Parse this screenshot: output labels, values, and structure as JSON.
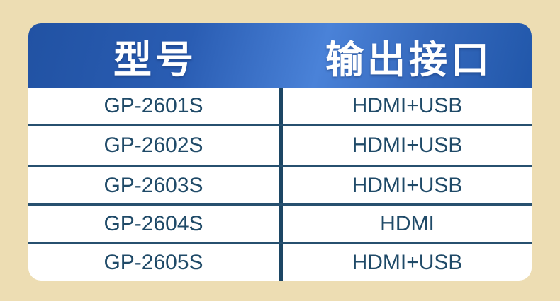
{
  "page": {
    "background_color": "#EDDDB3"
  },
  "table": {
    "header": {
      "columns": [
        {
          "label": "型号"
        },
        {
          "label": "输出接口"
        }
      ],
      "background_gradient": [
        "#2152A3",
        "#4A82D8",
        "#2157AA"
      ],
      "text_color": "#FFFFFF"
    },
    "rows": [
      {
        "model": "GP-2601S",
        "output": "HDMI+USB"
      },
      {
        "model": "GP-2602S",
        "output": "HDMI+USB"
      },
      {
        "model": "GP-2603S",
        "output": "HDMI+USB"
      },
      {
        "model": "GP-2604S",
        "output": "HDMI"
      },
      {
        "model": "GP-2605S",
        "output": "HDMI+USB"
      }
    ],
    "line_color": "#27506F",
    "divider_color": "#1C4664",
    "row_text_color": "#1F4A68"
  },
  "chart_data": {
    "type": "table",
    "title": "",
    "columns": [
      "型号",
      "输出接口"
    ],
    "rows": [
      [
        "GP-2601S",
        "HDMI+USB"
      ],
      [
        "GP-2602S",
        "HDMI+USB"
      ],
      [
        "GP-2603S",
        "HDMI+USB"
      ],
      [
        "GP-2604S",
        "HDMI"
      ],
      [
        "GP-2605S",
        "HDMI+USB"
      ]
    ]
  }
}
